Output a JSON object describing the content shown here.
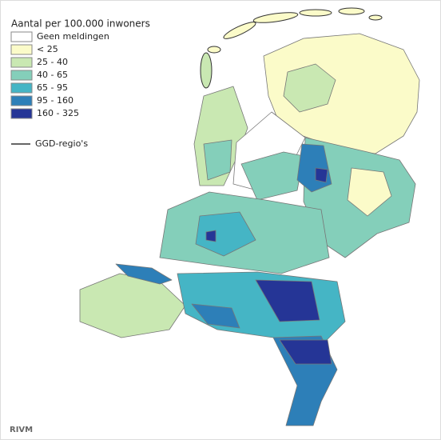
{
  "legend": {
    "title": "Aantal per 100.000 inwoners",
    "items": [
      {
        "label": "Geen meldingen",
        "color": "#ffffff"
      },
      {
        "label": "< 25",
        "color": "#fbfbc9"
      },
      {
        "label": "25 - 40",
        "color": "#c9e8b2"
      },
      {
        "label": "40 - 65",
        "color": "#84cfba"
      },
      {
        "label": "65 - 95",
        "color": "#45b5c5"
      },
      {
        "label": "95 - 160",
        "color": "#2d7fb8"
      },
      {
        "label": "160 - 325",
        "color": "#253596"
      }
    ],
    "line_label": "GGD-regio's"
  },
  "credit": "RIVM"
}
